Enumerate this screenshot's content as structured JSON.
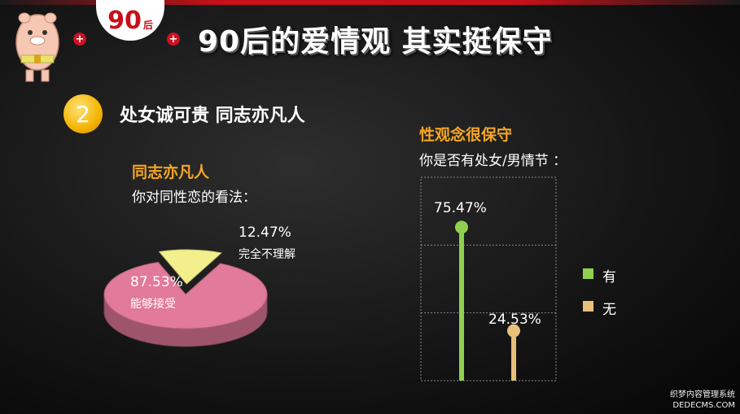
{
  "header": {
    "badge_number": "90",
    "badge_suffix": "后",
    "plus_sign": "+",
    "title": "90后的爱情观 其实挺保守"
  },
  "section": {
    "number": "2",
    "title": "处女诚可贵 同志亦凡人"
  },
  "chart_data": [
    {
      "type": "pie",
      "title": "同志亦凡人",
      "subtitle": "你对同性恋的看法：",
      "slices": [
        {
          "label": "能够接受",
          "value": 87.53,
          "display": "87.53%",
          "color": "#e27a9a"
        },
        {
          "label": "完全不理解",
          "value": 12.47,
          "display": "12.47%",
          "color": "#f3ef8c"
        }
      ]
    },
    {
      "type": "bar",
      "title": "性观念很保守",
      "subtitle": "你是否有处女/男情节 ：",
      "ylim": [
        0,
        100
      ],
      "series": [
        {
          "name": "有",
          "value": 75.47,
          "display": "75.47%",
          "color": "#8fd14f"
        },
        {
          "name": "无",
          "value": 24.53,
          "display": "24.53%",
          "color": "#e7c07a"
        }
      ]
    }
  ],
  "watermark": {
    "line1": "织梦内容管理系统",
    "line2": "DEDECMS.COM"
  }
}
